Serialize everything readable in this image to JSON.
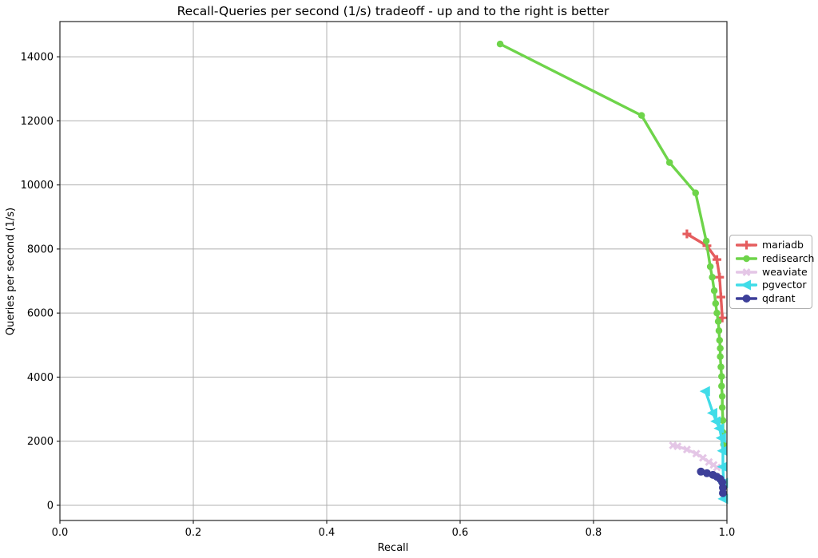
{
  "chart_data": {
    "type": "line",
    "title": "Recall-Queries per second (1/s) tradeoff - up and to the right is better",
    "xlabel": "Recall",
    "ylabel": "Queries per second (1/s)",
    "xlim": [
      0.0,
      1.0
    ],
    "ylim": [
      -475,
      15100
    ],
    "grid": true,
    "legend_position": "right of plot, vertically centered, outside axes",
    "xtick_labels": [
      "0.0",
      "0.2",
      "0.4",
      "0.6",
      "0.8",
      "1.0"
    ],
    "ytick_labels": [
      "0",
      "2000",
      "4000",
      "6000",
      "8000",
      "10000",
      "12000",
      "14000"
    ],
    "series": [
      {
        "name": "mariadb",
        "color": "#e55d5e",
        "marker": "plus",
        "linewidth": 3.4,
        "markersize": 11,
        "points": [
          [
            0.94,
            8470
          ],
          [
            0.97,
            8100
          ],
          [
            0.985,
            7670
          ],
          [
            0.989,
            7120
          ],
          [
            0.991,
            6500
          ],
          [
            0.993,
            5850
          ]
        ]
      },
      {
        "name": "redisearch",
        "color": "#6ed44a",
        "marker": "circle",
        "linewidth": 3.4,
        "markersize": 9.5,
        "points": [
          [
            0.66,
            14400
          ],
          [
            0.872,
            12170
          ],
          [
            0.914,
            10700
          ],
          [
            0.953,
            9750
          ],
          [
            0.969,
            8250
          ],
          [
            0.975,
            7450
          ],
          [
            0.978,
            7120
          ],
          [
            0.981,
            6700
          ],
          [
            0.983,
            6300
          ],
          [
            0.985,
            6000
          ],
          [
            0.987,
            5740
          ],
          [
            0.988,
            5450
          ],
          [
            0.989,
            5150
          ],
          [
            0.99,
            4900
          ],
          [
            0.99,
            4640
          ],
          [
            0.991,
            4320
          ],
          [
            0.992,
            4020
          ],
          [
            0.992,
            3720
          ],
          [
            0.993,
            3400
          ],
          [
            0.993,
            3050
          ],
          [
            0.994,
            2650
          ],
          [
            0.994,
            2280
          ],
          [
            0.995,
            1900
          ]
        ]
      },
      {
        "name": "weaviate",
        "color": "#e4c6e6",
        "marker": "x",
        "linewidth": 3.4,
        "markersize": 10,
        "points": [
          [
            0.919,
            1870
          ],
          [
            0.926,
            1840
          ],
          [
            0.94,
            1740
          ],
          [
            0.954,
            1610
          ],
          [
            0.964,
            1480
          ],
          [
            0.973,
            1350
          ],
          [
            0.98,
            1260
          ],
          [
            0.985,
            1180
          ]
        ]
      },
      {
        "name": "pgvector",
        "color": "#40dce8",
        "marker": "triangle-left",
        "linewidth": 3.4,
        "markersize": 13,
        "points": [
          [
            0.968,
            3560
          ],
          [
            0.979,
            2880
          ],
          [
            0.984,
            2620
          ],
          [
            0.989,
            2400
          ],
          [
            0.992,
            2100
          ],
          [
            0.994,
            1700
          ],
          [
            0.994,
            1200
          ],
          [
            0.995,
            700
          ],
          [
            0.995,
            200
          ]
        ]
      },
      {
        "name": "qdrant",
        "color": "#3d3f99",
        "marker": "circle",
        "linewidth": 4.6,
        "markersize": 11,
        "points": [
          [
            0.961,
            1050
          ],
          [
            0.97,
            1000
          ],
          [
            0.979,
            950
          ],
          [
            0.985,
            890
          ],
          [
            0.99,
            820
          ],
          [
            0.993,
            720
          ],
          [
            0.994,
            550
          ],
          [
            0.994,
            380
          ]
        ]
      }
    ]
  },
  "colors": {
    "background": "#ffffff",
    "grid": "#b0b0b0",
    "spine": "#262626",
    "text": "#000000"
  }
}
